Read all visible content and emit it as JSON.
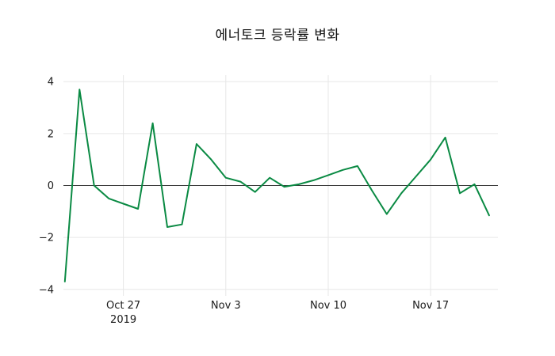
{
  "figure": {
    "title": "에너토크 등락률 변화",
    "background": "#ffffff"
  },
  "chart_data": {
    "type": "line",
    "title": "에너토크 등락률 변화",
    "xlabel": "",
    "ylabel": "",
    "legend": false,
    "grid": true,
    "series_name": "등락률",
    "line_color": "#0a8a43",
    "grid_color": "#e7e7e7",
    "zero_line_color": "#3a3a3a",
    "tick_label_color": "#1a1a1a",
    "ylim": [
      -4.25,
      4.25
    ],
    "dates": [
      "2019-10-23",
      "2019-10-24",
      "2019-10-25",
      "2019-10-26",
      "2019-10-27",
      "2019-10-28",
      "2019-10-29",
      "2019-10-30",
      "2019-10-31",
      "2019-11-01",
      "2019-11-02",
      "2019-11-03",
      "2019-11-04",
      "2019-11-05",
      "2019-11-06",
      "2019-11-07",
      "2019-11-08",
      "2019-11-09",
      "2019-11-10",
      "2019-11-11",
      "2019-11-12",
      "2019-11-13",
      "2019-11-14",
      "2019-11-15",
      "2019-11-16",
      "2019-11-17",
      "2019-11-18",
      "2019-11-19",
      "2019-11-20",
      "2019-11-21"
    ],
    "values": [
      -3.7,
      3.7,
      0.0,
      -0.5,
      -0.7,
      -0.9,
      2.4,
      -1.6,
      -1.5,
      1.6,
      1.0,
      0.3,
      0.15,
      -0.25,
      0.3,
      -0.05,
      0.05,
      0.2,
      0.4,
      0.6,
      0.75,
      -0.2,
      -1.1,
      -0.3,
      0.35,
      1.0,
      1.85,
      -0.3,
      0.05,
      -1.15
    ],
    "y_ticks": [
      {
        "value": -4,
        "label": "−4"
      },
      {
        "value": -2,
        "label": "−2"
      },
      {
        "value": 0,
        "label": "0"
      },
      {
        "value": 2,
        "label": "2"
      },
      {
        "value": 4,
        "label": "4"
      }
    ],
    "x_ticks": [
      {
        "index": 4,
        "label": "Oct 27",
        "sublabel": "2019"
      },
      {
        "index": 11,
        "label": "Nov 3"
      },
      {
        "index": 18,
        "label": "Nov 10"
      },
      {
        "index": 25,
        "label": "Nov 17"
      }
    ]
  }
}
